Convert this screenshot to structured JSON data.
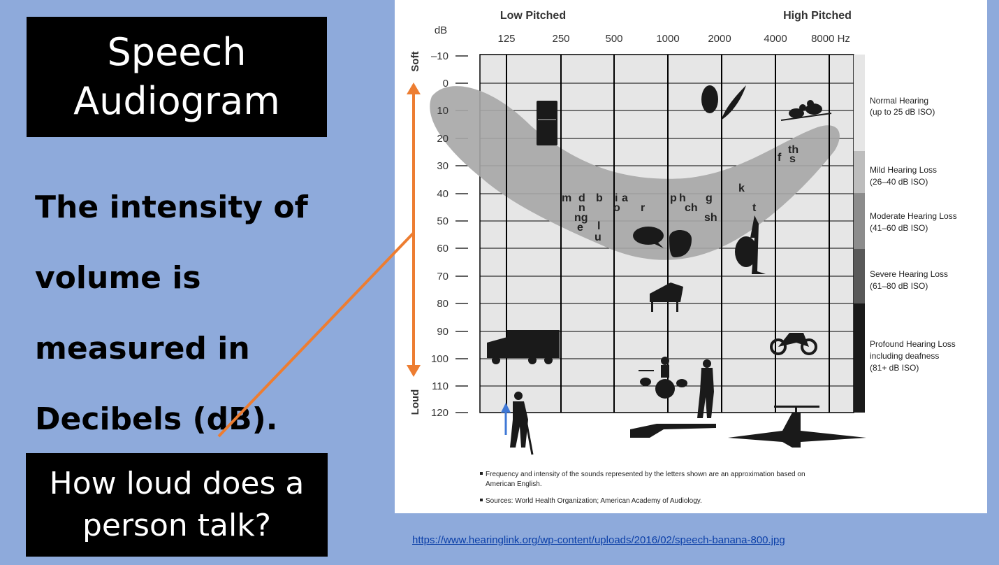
{
  "slide": {
    "title_lines": [
      "Speech",
      "Audiogram"
    ],
    "body_lines": [
      "The intensity of",
      "volume is",
      "measured in",
      "Decibels (dB)."
    ],
    "question_lines": [
      "How loud does a",
      "person talk?"
    ],
    "source_url": "https://www.hearinglink.org/wp-content/uploads/2016/02/speech-banana-800.jpg"
  },
  "colors": {
    "background": "#8eaadb",
    "arrow": "#ed7d31",
    "banana": "#a6a6a6",
    "plot_bg": "#e6e6e6"
  },
  "audiogram": {
    "low_label": "Low Pitched",
    "high_label": "High Pitched",
    "db_label": "dB",
    "soft_label": "Soft",
    "loud_label": "Loud",
    "freq_labels": [
      "125",
      "250",
      "500",
      "1000",
      "2000",
      "4000",
      "8000 Hz"
    ],
    "db_labels": [
      "–10",
      "0",
      "10",
      "20",
      "30",
      "40",
      "50",
      "60",
      "70",
      "80",
      "90",
      "100",
      "110",
      "120"
    ],
    "zones": [
      {
        "line1": "Normal Hearing",
        "line2": "(up to 25 dB ISO)",
        "line3": "",
        "shade": "#e6e6e6"
      },
      {
        "line1": "Mild Hearing Loss",
        "line2": "(26–40 dB ISO)",
        "line3": "",
        "shade": "#bdbdbd"
      },
      {
        "line1": "Moderate Hearing Loss",
        "line2": "(41–60 dB ISO)",
        "line3": "",
        "shade": "#8c8c8c"
      },
      {
        "line1": "Severe Hearing Loss",
        "line2": "(61–80 dB ISO)",
        "line3": "",
        "shade": "#595959"
      },
      {
        "line1": "Profound Hearing Loss",
        "line2": "including deafness",
        "line3": "(81+ dB ISO)",
        "shade": "#1a1a1a"
      }
    ],
    "phonemes": [
      "m",
      "d",
      "b",
      "i",
      "a",
      "n",
      "o",
      "r",
      "ng",
      "e",
      "l",
      "u",
      "p",
      "h",
      "g",
      "ch",
      "sh",
      "k",
      "t",
      "f",
      "th",
      "s"
    ],
    "footnote1_a": "Frequency and intensity of the sounds represented by the letters shown are an approximation based on",
    "footnote1_b": "American English.",
    "footnote2": "Sources: World Health Organization; American Academy of Audiology."
  }
}
